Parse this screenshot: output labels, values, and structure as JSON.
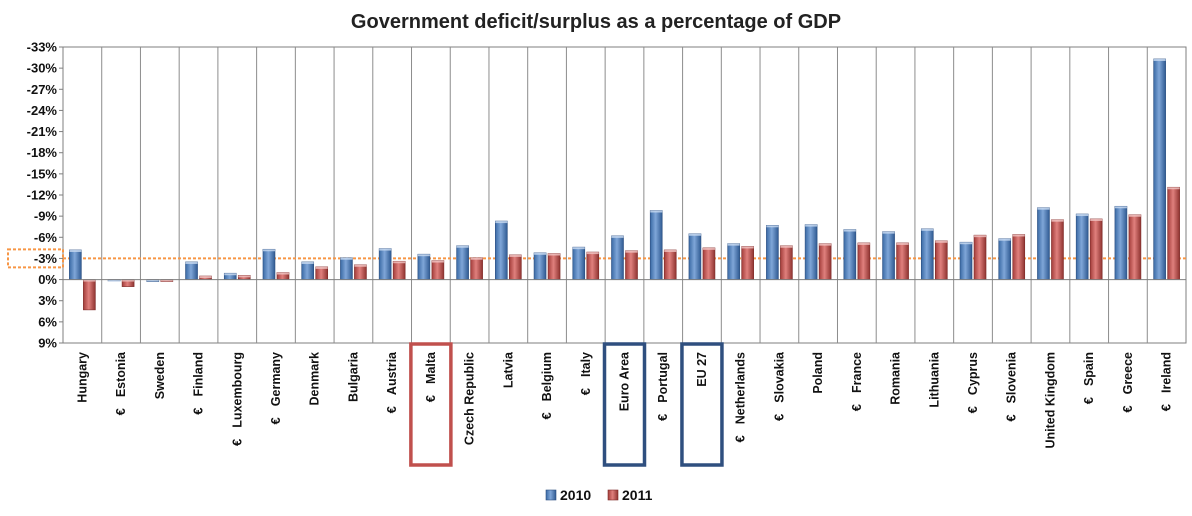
{
  "chart_data": {
    "type": "bar",
    "title": "Government deficit/surplus as a percentage of GDP",
    "ylim": [
      9,
      -33
    ],
    "y_ticks": [
      "-33%",
      "-30%",
      "-27%",
      "-24%",
      "-21%",
      "-18%",
      "-15%",
      "-12%",
      "-9%",
      "-6%",
      "-3%",
      "0%",
      "3%",
      "6%",
      "9%"
    ],
    "grid": "vertical",
    "legend_position": "bottom",
    "reference_line": -3,
    "euro_symbol": "€",
    "categories": [
      "Hungary",
      "Estonia",
      "Sweden",
      "Finland",
      "Luxembourg",
      "Germany",
      "Denmark",
      "Bulgaria",
      "Austria",
      "Malta",
      "Czech Republic",
      "Latvia",
      "Belgium",
      "Italy",
      "Euro Area",
      "Portugal",
      "EU 27",
      "Netherlands",
      "Slovakia",
      "Poland",
      "France",
      "Romania",
      "Lithuania",
      "Cyprus",
      "Slovenia",
      "United Kingdom",
      "Spain",
      "Greece",
      "Ireland"
    ],
    "euro_members": [
      false,
      true,
      false,
      true,
      true,
      true,
      false,
      false,
      true,
      true,
      false,
      false,
      true,
      true,
      false,
      true,
      false,
      true,
      true,
      false,
      true,
      false,
      false,
      true,
      true,
      false,
      true,
      true,
      true
    ],
    "highlighted": {
      "Malta": "#c0504d",
      "Euro Area": "#2f4f7f",
      "EU 27": "#2f4f7f"
    },
    "series": [
      {
        "name": "2010",
        "color": "#4f81bd",
        "values": [
          -4.2,
          0.2,
          0.3,
          -2.5,
          -0.9,
          -4.3,
          -2.5,
          -3.1,
          -4.4,
          -3.6,
          -4.8,
          -8.3,
          -3.8,
          -4.6,
          -6.2,
          -9.8,
          -6.5,
          -5.1,
          -7.7,
          -7.8,
          -7.1,
          -6.8,
          -7.2,
          -5.3,
          -5.8,
          -10.2,
          -9.3,
          -10.4,
          -31.3
        ]
      },
      {
        "name": "2011",
        "color": "#c0504d",
        "values": [
          4.3,
          1.0,
          0.3,
          -0.5,
          -0.6,
          -1.0,
          -1.8,
          -2.1,
          -2.6,
          -2.7,
          -3.1,
          -3.5,
          -3.7,
          -3.9,
          -4.1,
          -4.2,
          -4.5,
          -4.7,
          -4.8,
          -5.1,
          -5.2,
          -5.2,
          -5.5,
          -6.3,
          -6.4,
          -8.5,
          -8.6,
          -9.2,
          -13.1
        ]
      }
    ]
  }
}
